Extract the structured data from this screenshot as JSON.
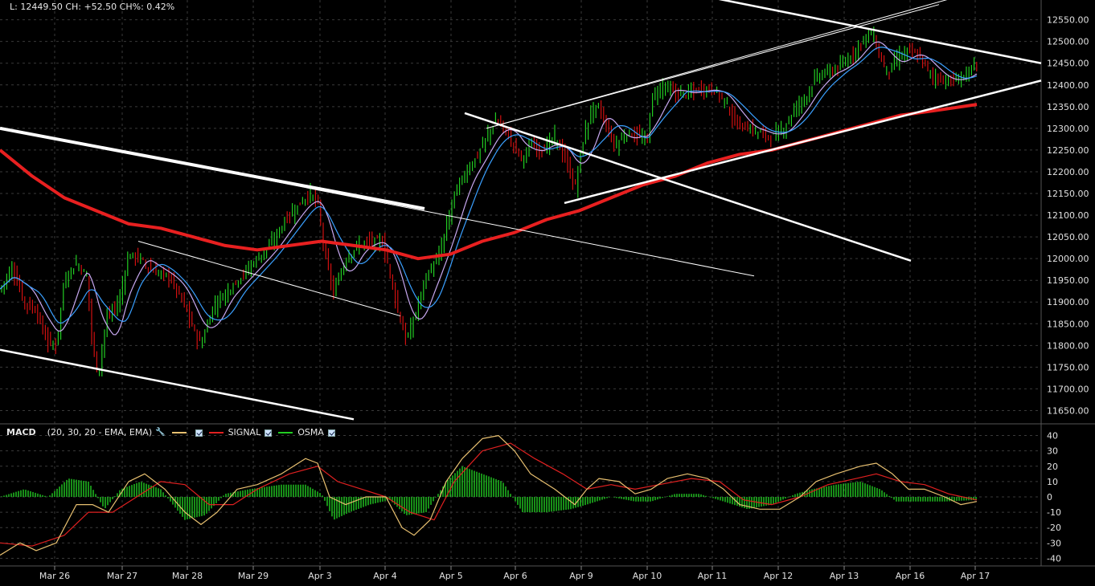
{
  "header": {
    "quote_line": "L: 12449.50 CH: +52.50 CH%: 0.42%"
  },
  "macd_legend": {
    "title": "MACD",
    "params": "(20, 30, 20 - EMA, EMA)",
    "signal_label": "SIGNAL",
    "osma_label": "OSMA",
    "macd_color": "#e8c070",
    "signal_color": "#e02020",
    "osma_color": "#22cc22",
    "settings_icon": "wrench-icon",
    "checkbox_icon": "checkbox-checked-icon"
  },
  "chart_data": [
    {
      "type": "candlestick",
      "title": "",
      "x_ticks": [
        "Mar 26",
        "Mar 27",
        "Mar 28",
        "Mar 29",
        "Apr 3",
        "Apr 4",
        "Apr 5",
        "Apr 6",
        "Apr 9",
        "Apr 10",
        "Apr 11",
        "Apr 12",
        "Apr 13",
        "Apr 16",
        "Apr 17"
      ],
      "y_ticks": [
        11650,
        11700,
        11750,
        11800,
        11850,
        11900,
        11950,
        12000,
        12050,
        12100,
        12150,
        12200,
        12250,
        12300,
        12350,
        12400,
        12450,
        12500,
        12550
      ],
      "ylim": [
        11625,
        12590
      ],
      "last": 12449.5,
      "up_color": "#22cc22",
      "down_color": "#d01010",
      "price_path": [
        [
          0,
          11930
        ],
        [
          15,
          11980
        ],
        [
          30,
          11900
        ],
        [
          45,
          11880
        ],
        [
          58,
          11810
        ],
        [
          70,
          11800
        ],
        [
          80,
          11950
        ],
        [
          95,
          11990
        ],
        [
          108,
          11960
        ],
        [
          115,
          11800
        ],
        [
          122,
          11730
        ],
        [
          132,
          11860
        ],
        [
          148,
          11900
        ],
        [
          160,
          12010
        ],
        [
          175,
          12000
        ],
        [
          190,
          11970
        ],
        [
          210,
          11960
        ],
        [
          228,
          11900
        ],
        [
          240,
          11840
        ],
        [
          250,
          11800
        ],
        [
          265,
          11890
        ],
        [
          285,
          11930
        ],
        [
          300,
          11960
        ],
        [
          325,
          12010
        ],
        [
          340,
          12040
        ],
        [
          355,
          12090
        ],
        [
          370,
          12120
        ],
        [
          385,
          12150
        ],
        [
          395,
          12130
        ],
        [
          405,
          12000
        ],
        [
          415,
          11920
        ],
        [
          430,
          12000
        ],
        [
          445,
          12030
        ],
        [
          460,
          12040
        ],
        [
          475,
          12040
        ],
        [
          485,
          11970
        ],
        [
          495,
          11880
        ],
        [
          505,
          11810
        ],
        [
          515,
          11860
        ],
        [
          530,
          11960
        ],
        [
          545,
          12000
        ],
        [
          555,
          12070
        ],
        [
          565,
          12150
        ],
        [
          580,
          12200
        ],
        [
          595,
          12240
        ],
        [
          608,
          12290
        ],
        [
          618,
          12320
        ],
        [
          630,
          12290
        ],
        [
          640,
          12260
        ],
        [
          650,
          12230
        ],
        [
          660,
          12260
        ],
        [
          675,
          12250
        ],
        [
          690,
          12280
        ],
        [
          705,
          12220
        ],
        [
          715,
          12160
        ],
        [
          725,
          12270
        ],
        [
          735,
          12340
        ],
        [
          745,
          12350
        ],
        [
          755,
          12300
        ],
        [
          765,
          12260
        ],
        [
          780,
          12290
        ],
        [
          795,
          12280
        ],
        [
          805,
          12270
        ],
        [
          810,
          12370
        ],
        [
          825,
          12400
        ],
        [
          840,
          12380
        ],
        [
          855,
          12380
        ],
        [
          870,
          12390
        ],
        [
          885,
          12390
        ],
        [
          900,
          12370
        ],
        [
          915,
          12310
        ],
        [
          930,
          12300
        ],
        [
          945,
          12290
        ],
        [
          960,
          12280
        ],
        [
          975,
          12300
        ],
        [
          990,
          12350
        ],
        [
          1005,
          12380
        ],
        [
          1015,
          12420
        ],
        [
          1030,
          12430
        ],
        [
          1045,
          12440
        ],
        [
          1060,
          12470
        ],
        [
          1075,
          12510
        ],
        [
          1085,
          12520
        ],
        [
          1095,
          12460
        ],
        [
          1105,
          12430
        ],
        [
          1115,
          12460
        ],
        [
          1130,
          12480
        ],
        [
          1145,
          12460
        ],
        [
          1160,
          12420
        ],
        [
          1175,
          12410
        ],
        [
          1190,
          12410
        ],
        [
          1205,
          12430
        ],
        [
          1215,
          12449
        ]
      ],
      "sma_red": [
        [
          0,
          12250
        ],
        [
          40,
          12190
        ],
        [
          80,
          12140
        ],
        [
          120,
          12110
        ],
        [
          160,
          12080
        ],
        [
          200,
          12070
        ],
        [
          240,
          12050
        ],
        [
          280,
          12030
        ],
        [
          320,
          12020
        ],
        [
          360,
          12030
        ],
        [
          400,
          12040
        ],
        [
          440,
          12030
        ],
        [
          480,
          12020
        ],
        [
          520,
          12000
        ],
        [
          560,
          12010
        ],
        [
          600,
          12040
        ],
        [
          640,
          12060
        ],
        [
          680,
          12090
        ],
        [
          720,
          12110
        ],
        [
          760,
          12140
        ],
        [
          800,
          12170
        ],
        [
          840,
          12190
        ],
        [
          880,
          12220
        ],
        [
          920,
          12240
        ],
        [
          960,
          12250
        ],
        [
          1000,
          12270
        ],
        [
          1040,
          12290
        ],
        [
          1080,
          12310
        ],
        [
          1120,
          12330
        ],
        [
          1160,
          12340
        ],
        [
          1215,
          12355
        ]
      ],
      "channel_lines": [
        [
          [
            0,
            11790
          ],
          [
            440,
            11630
          ]
        ],
        [
          [
            0,
            12300
          ],
          [
            528,
            12115
          ]
        ],
        [
          [
            20,
            12295
          ],
          [
            938,
            11960
          ]
        ],
        [
          [
            578,
            12335
          ],
          [
            1133,
            11995
          ]
        ],
        [
          [
            172,
            12040
          ],
          [
            498,
            11868
          ]
        ],
        [
          [
            888,
            12600
          ],
          [
            1295,
            12450
          ]
        ],
        [
          [
            702,
            12128
          ],
          [
            1295,
            12410
          ]
        ],
        [
          [
            605,
            12300
          ],
          [
            1168,
            12585
          ]
        ],
        [
          [
            615,
            12305
          ],
          [
            1185,
            12600
          ]
        ]
      ]
    },
    {
      "type": "line",
      "title": "MACD",
      "y_ticks": [
        40,
        30,
        20,
        10,
        0,
        -10,
        -20,
        -30,
        -40
      ],
      "ylim": [
        -45,
        45
      ],
      "series": [
        {
          "name": "MACD",
          "values": [
            [
              0,
              -38
            ],
            [
              25,
              -30
            ],
            [
              45,
              -35
            ],
            [
              70,
              -30
            ],
            [
              95,
              -5
            ],
            [
              115,
              -5
            ],
            [
              135,
              -10
            ],
            [
              160,
              10
            ],
            [
              180,
              15
            ],
            [
              205,
              5
            ],
            [
              230,
              -10
            ],
            [
              250,
              -18
            ],
            [
              270,
              -10
            ],
            [
              295,
              5
            ],
            [
              320,
              8
            ],
            [
              350,
              15
            ],
            [
              380,
              25
            ],
            [
              395,
              22
            ],
            [
              410,
              0
            ],
            [
              430,
              -5
            ],
            [
              455,
              0
            ],
            [
              480,
              0
            ],
            [
              500,
              -20
            ],
            [
              515,
              -25
            ],
            [
              535,
              -15
            ],
            [
              555,
              10
            ],
            [
              575,
              25
            ],
            [
              600,
              38
            ],
            [
              620,
              40
            ],
            [
              640,
              30
            ],
            [
              660,
              15
            ],
            [
              690,
              5
            ],
            [
              715,
              -5
            ],
            [
              730,
              5
            ],
            [
              745,
              12
            ],
            [
              770,
              10
            ],
            [
              790,
              2
            ],
            [
              810,
              5
            ],
            [
              830,
              12
            ],
            [
              855,
              15
            ],
            [
              880,
              12
            ],
            [
              900,
              5
            ],
            [
              920,
              -5
            ],
            [
              945,
              -8
            ],
            [
              970,
              -8
            ],
            [
              995,
              0
            ],
            [
              1015,
              10
            ],
            [
              1040,
              15
            ],
            [
              1070,
              20
            ],
            [
              1090,
              22
            ],
            [
              1110,
              15
            ],
            [
              1130,
              5
            ],
            [
              1150,
              5
            ],
            [
              1175,
              0
            ],
            [
              1195,
              -5
            ],
            [
              1215,
              -3
            ]
          ]
        },
        {
          "name": "SIGNAL",
          "values": [
            [
              0,
              -30
            ],
            [
              40,
              -32
            ],
            [
              80,
              -25
            ],
            [
              110,
              -10
            ],
            [
              140,
              -10
            ],
            [
              170,
              0
            ],
            [
              200,
              10
            ],
            [
              230,
              8
            ],
            [
              260,
              -5
            ],
            [
              290,
              -5
            ],
            [
              320,
              5
            ],
            [
              360,
              15
            ],
            [
              395,
              20
            ],
            [
              420,
              10
            ],
            [
              450,
              5
            ],
            [
              480,
              0
            ],
            [
              510,
              -10
            ],
            [
              540,
              -15
            ],
            [
              565,
              10
            ],
            [
              600,
              30
            ],
            [
              635,
              35
            ],
            [
              665,
              25
            ],
            [
              700,
              15
            ],
            [
              730,
              5
            ],
            [
              760,
              8
            ],
            [
              790,
              5
            ],
            [
              820,
              8
            ],
            [
              860,
              12
            ],
            [
              895,
              10
            ],
            [
              925,
              -2
            ],
            [
              960,
              -5
            ],
            [
              995,
              0
            ],
            [
              1030,
              8
            ],
            [
              1065,
              12
            ],
            [
              1090,
              15
            ],
            [
              1120,
              10
            ],
            [
              1150,
              8
            ],
            [
              1180,
              2
            ],
            [
              1215,
              -2
            ]
          ]
        },
        {
          "name": "OSMA",
          "values": [
            [
              0,
              0
            ],
            [
              30,
              5
            ],
            [
              60,
              0
            ],
            [
              85,
              12
            ],
            [
              110,
              10
            ],
            [
              130,
              -8
            ],
            [
              150,
              5
            ],
            [
              175,
              10
            ],
            [
              200,
              5
            ],
            [
              230,
              -15
            ],
            [
              255,
              -12
            ],
            [
              280,
              2
            ],
            [
              310,
              5
            ],
            [
              350,
              8
            ],
            [
              380,
              8
            ],
            [
              400,
              2
            ],
            [
              415,
              -15
            ],
            [
              435,
              -10
            ],
            [
              460,
              -5
            ],
            [
              485,
              -2
            ],
            [
              505,
              -12
            ],
            [
              530,
              -10
            ],
            [
              555,
              10
            ],
            [
              575,
              20
            ],
            [
              600,
              15
            ],
            [
              625,
              10
            ],
            [
              650,
              -10
            ],
            [
              680,
              -10
            ],
            [
              710,
              -8
            ],
            [
              730,
              -5
            ],
            [
              760,
              0
            ],
            [
              790,
              -3
            ],
            [
              810,
              -3
            ],
            [
              840,
              2
            ],
            [
              870,
              2
            ],
            [
              900,
              -3
            ],
            [
              930,
              -8
            ],
            [
              960,
              -5
            ],
            [
              990,
              2
            ],
            [
              1010,
              5
            ],
            [
              1040,
              8
            ],
            [
              1070,
              10
            ],
            [
              1095,
              5
            ],
            [
              1115,
              -3
            ],
            [
              1145,
              -3
            ],
            [
              1175,
              -3
            ],
            [
              1215,
              -2
            ]
          ]
        }
      ]
    }
  ]
}
